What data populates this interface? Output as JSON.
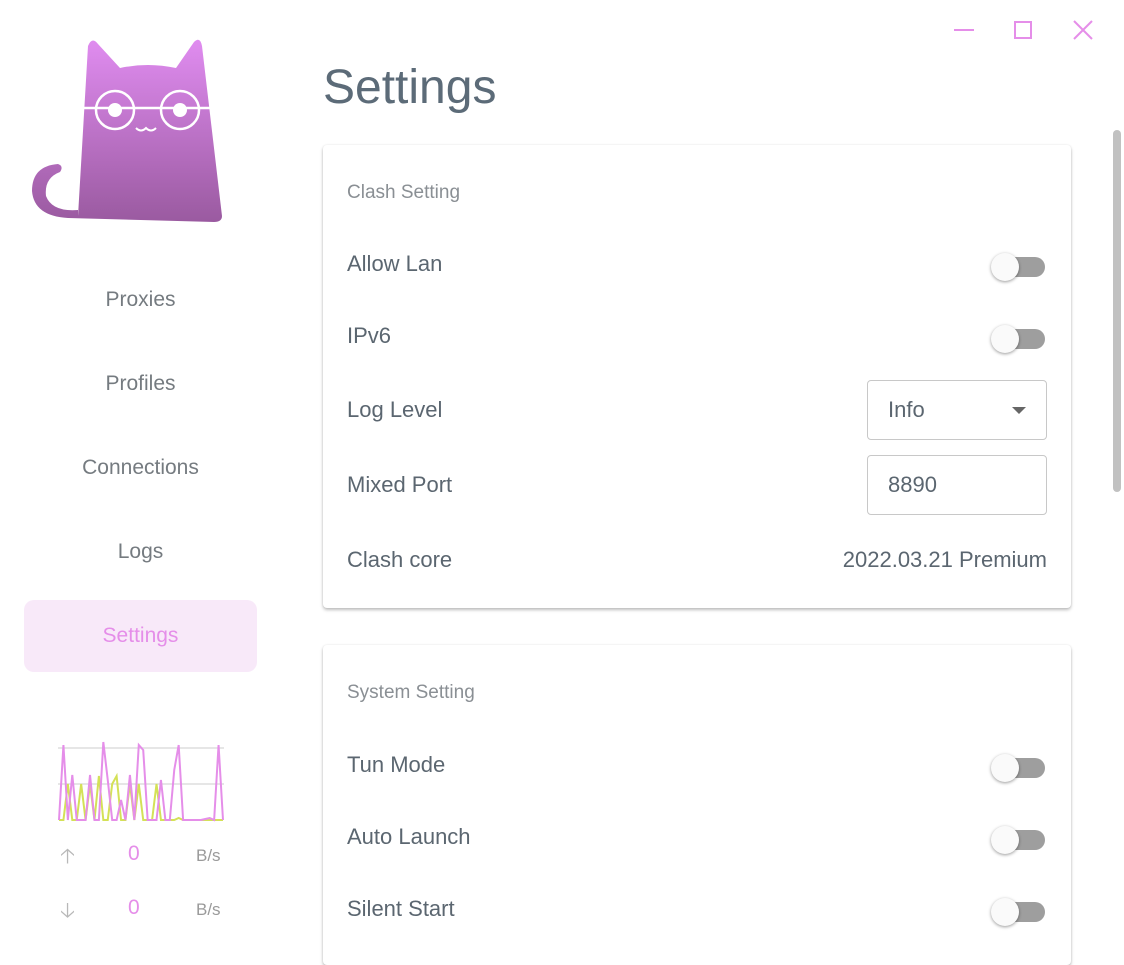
{
  "window": {
    "minimize_icon": "minimize-icon",
    "maximize_icon": "maximize-icon",
    "close_icon": "close-icon",
    "accent": "#e58ee9"
  },
  "sidebar": {
    "items": [
      {
        "label": "Proxies"
      },
      {
        "label": "Profiles"
      },
      {
        "label": "Connections"
      },
      {
        "label": "Logs"
      },
      {
        "label": "Settings",
        "active": true
      }
    ],
    "traffic": {
      "upload_value": "0",
      "upload_unit": "B/s",
      "download_value": "0",
      "download_unit": "B/s",
      "upload_icon": "arrow-up-icon",
      "download_icon": "arrow-down-icon",
      "upload_color": "#e58ee9",
      "download_color": "#d4e157"
    }
  },
  "main": {
    "title": "Settings",
    "clash": {
      "title": "Clash Setting",
      "allow_lan": {
        "label": "Allow Lan",
        "on": false
      },
      "ipv6": {
        "label": "IPv6",
        "on": false
      },
      "log_level": {
        "label": "Log Level",
        "value": "Info"
      },
      "mixed_port": {
        "label": "Mixed Port",
        "value": "8890"
      },
      "core": {
        "label": "Clash core",
        "value": "2022.03.21 Premium"
      }
    },
    "system": {
      "title": "System Setting",
      "tun": {
        "label": "Tun Mode",
        "on": false
      },
      "auto_launch": {
        "label": "Auto Launch",
        "on": false
      },
      "silent": {
        "label": "Silent Start",
        "on": false
      }
    }
  }
}
